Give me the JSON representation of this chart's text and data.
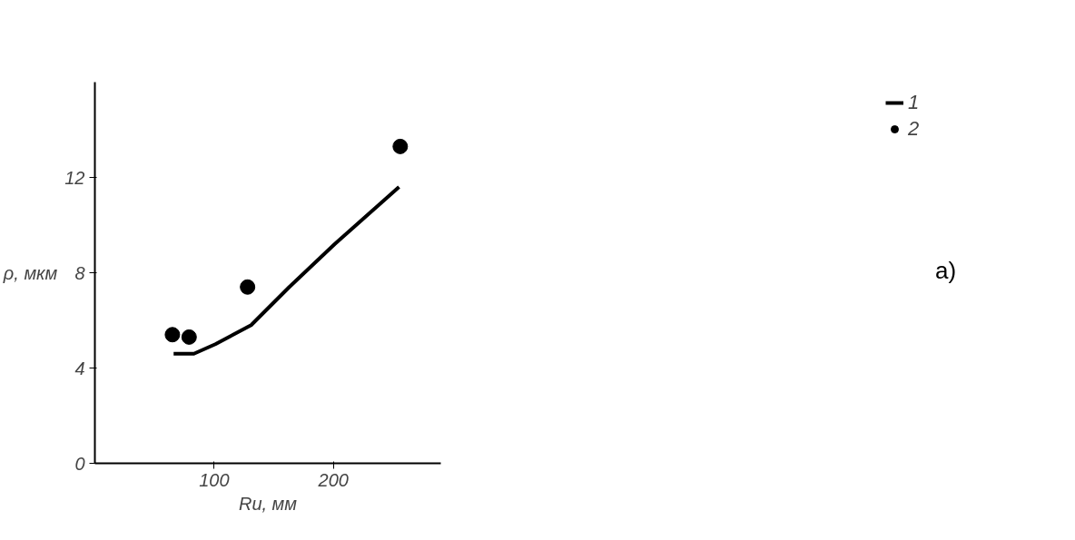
{
  "chart_data": {
    "type": "line",
    "xlabel": "Rи, мм",
    "ylabel": "ρ, мкм",
    "xlim": [
      0,
      290
    ],
    "ylim": [
      0,
      16
    ],
    "xticks": [
      100,
      200
    ],
    "yticks": [
      0,
      4,
      8,
      12
    ],
    "grid": false,
    "legend": "top right",
    "series": [
      {
        "name": "1",
        "color": "#000000",
        "marker": "none",
        "line_style": "solid",
        "x": [
          66,
          83,
          101,
          131,
          163,
          201,
          255
        ],
        "values": [
          4.6,
          4.6,
          5.0,
          5.8,
          7.4,
          9.2,
          11.6
        ]
      },
      {
        "name": "2",
        "type": "scatter",
        "color": "#000000",
        "marker": "circle",
        "x": [
          65,
          79,
          128,
          256
        ],
        "values": [
          5.4,
          5.3,
          7.4,
          13.3
        ]
      }
    ],
    "annotations": [
      "a)"
    ]
  }
}
